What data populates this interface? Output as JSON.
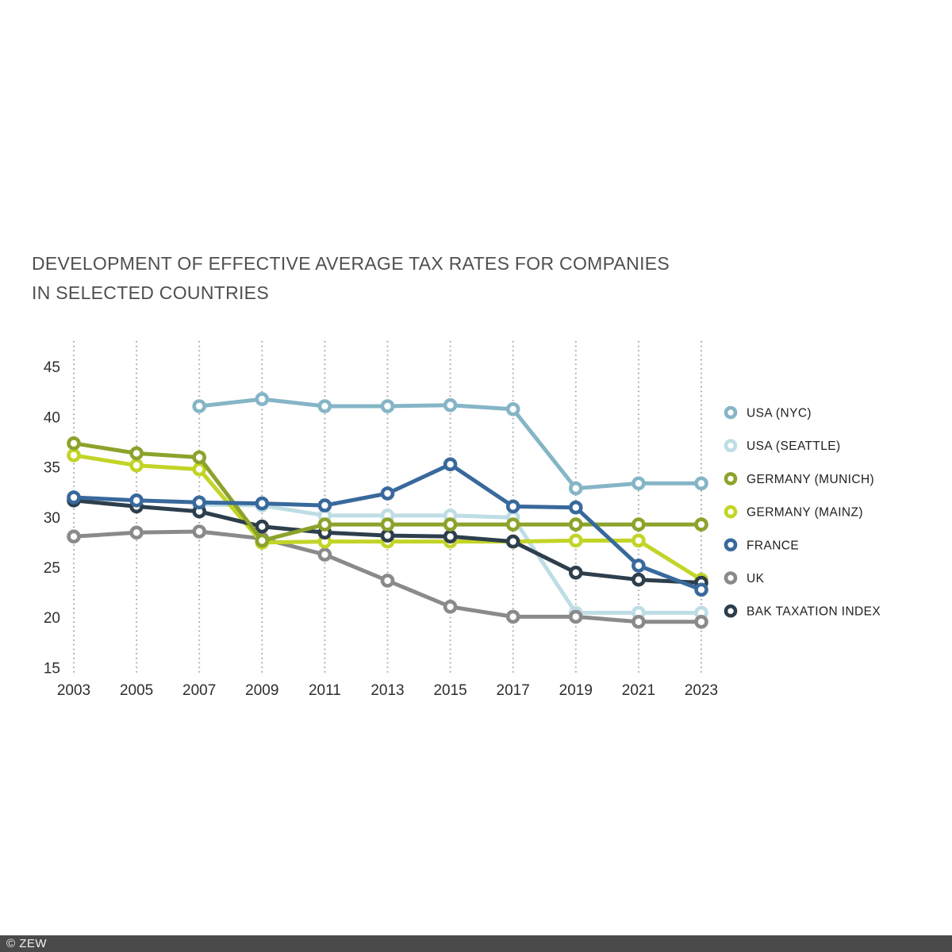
{
  "title": {
    "line1": "DEVELOPMENT OF EFFECTIVE AVERAGE TAX RATES FOR COMPANIES",
    "line2": "IN SELECTED COUNTRIES"
  },
  "footer": {
    "text": "© ZEW"
  },
  "colors": {
    "grid": "#a0a0a0",
    "axis_text": "#2e2e2e",
    "title_text": "#4f4f4f",
    "footer_bg": "#4a4a4a"
  },
  "chart_data": {
    "type": "line",
    "title": "DEVELOPMENT OF EFFECTIVE AVERAGE TAX RATES FOR COMPANIES IN SELECTED COUNTRIES",
    "x": [
      2003,
      2005,
      2007,
      2009,
      2011,
      2013,
      2015,
      2017,
      2019,
      2021,
      2023
    ],
    "xlabel": "",
    "ylabel": "",
    "ylim": [
      15,
      45
    ],
    "yticks": [
      15,
      20,
      25,
      30,
      35,
      40,
      45
    ],
    "grid": "vertical-dotted",
    "legend_position": "right",
    "series": [
      {
        "name": "USA (NYC)",
        "color": "#85b5c7",
        "values": [
          null,
          null,
          41.1,
          41.8,
          41.1,
          41.1,
          41.2,
          40.8,
          32.9,
          33.4,
          33.4
        ]
      },
      {
        "name": "USA (SEATTLE)",
        "color": "#bedde5",
        "values": [
          null,
          null,
          31.3,
          31.2,
          30.2,
          30.2,
          30.2,
          30.0,
          20.5,
          20.5,
          20.5
        ]
      },
      {
        "name": "GERMANY (MUNICH)",
        "color": "#8ba32b",
        "values": [
          37.4,
          36.4,
          36.0,
          27.7,
          29.3,
          29.3,
          29.3,
          29.3,
          29.3,
          29.3,
          29.3
        ]
      },
      {
        "name": "GERMANY (MAINZ)",
        "color": "#c2d426",
        "values": [
          36.2,
          35.2,
          34.8,
          27.5,
          27.6,
          27.6,
          27.6,
          27.6,
          27.7,
          27.7,
          23.8
        ]
      },
      {
        "name": "FRANCE",
        "color": "#38699c",
        "values": [
          32.0,
          31.7,
          31.5,
          31.4,
          31.2,
          32.4,
          35.3,
          31.1,
          31.0,
          25.2,
          22.8
        ]
      },
      {
        "name": "UK",
        "color": "#8a8a8a",
        "values": [
          28.1,
          28.5,
          28.6,
          27.9,
          26.3,
          23.7,
          21.1,
          20.1,
          20.1,
          19.6,
          19.6
        ]
      },
      {
        "name": "BAK TAXATION INDEX",
        "color": "#2d3e4c",
        "values": [
          31.7,
          31.1,
          30.6,
          29.1,
          28.5,
          28.2,
          28.1,
          27.6,
          24.5,
          23.8,
          23.5
        ]
      }
    ],
    "draw_order": [
      "USA (NYC)",
      "USA (SEATTLE)",
      "UK",
      "GERMANY (MAINZ)",
      "BAK TAXATION INDEX",
      "GERMANY (MUNICH)",
      "FRANCE"
    ]
  }
}
